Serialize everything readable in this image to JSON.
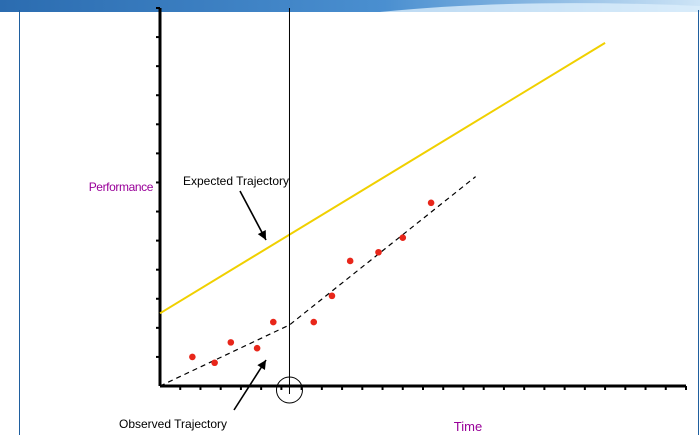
{
  "chart_data": {
    "type": "scatter",
    "title": "",
    "xlabel": "Time",
    "ylabel": "Performance",
    "xlim": [
      0,
      26
    ],
    "ylim": [
      0,
      13
    ],
    "x_ticks": 26,
    "y_ticks": 13,
    "grid": false,
    "colors": {
      "axis_label": "#990099",
      "expected_line": "#f0d000",
      "points": "#e8261a",
      "observed_line": "#000000",
      "header_top": "#2b6cb0",
      "header_bottom": "#cde4f6"
    },
    "expected_trajectory": {
      "label": "Expected Trajectory",
      "x": [
        0,
        22
      ],
      "y": [
        2.5,
        11.8
      ]
    },
    "observed_trajectory": {
      "label": "Observed Trajectory",
      "style": "dashed",
      "x": [
        0,
        6.4,
        15.6
      ],
      "y": [
        0,
        2.1,
        7.2
      ]
    },
    "observation_points": {
      "x": [
        1.6,
        2.7,
        3.5,
        4.8,
        5.6,
        7.6,
        8.5,
        9.4,
        10.8,
        12.0,
        13.4
      ],
      "y": [
        1.0,
        0.8,
        1.5,
        1.3,
        2.2,
        2.2,
        3.1,
        4.3,
        4.6,
        5.1,
        6.3
      ]
    },
    "intervention": {
      "x": 6.4,
      "marked_on_axis": true
    }
  }
}
